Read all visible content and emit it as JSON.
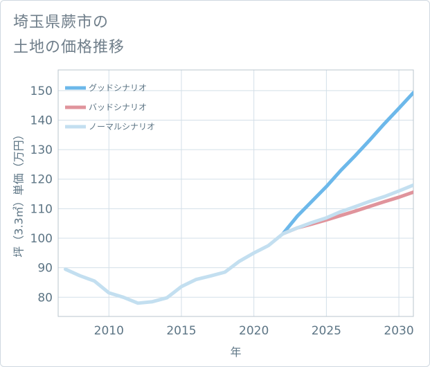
{
  "title": {
    "line1": "埼玉県蕨市の",
    "line2": "土地の価格推移"
  },
  "chart_data": {
    "type": "line",
    "xlabel": "年",
    "ylabel": "坪（3.3㎡）単価（万円）",
    "xlim": [
      2006.5,
      2031
    ],
    "ylim": [
      73.5,
      157
    ],
    "xticks": [
      2010,
      2015,
      2020,
      2025,
      2030
    ],
    "yticks": [
      80,
      90,
      100,
      110,
      120,
      130,
      140,
      150
    ],
    "grid": true,
    "legend_position": "top-left",
    "series": [
      {
        "name": "グッドシナリオ",
        "color": "#6cb8ea",
        "x": [
          2022,
          2023,
          2024,
          2025,
          2026,
          2027,
          2028,
          2029,
          2030,
          2031
        ],
        "y": [
          101.5,
          107.5,
          112.5,
          117.5,
          123.0,
          128.0,
          133.3,
          138.8,
          144.0,
          149.3
        ]
      },
      {
        "name": "バッドシナリオ",
        "color": "#e0949c",
        "x": [
          2022,
          2023,
          2024,
          2025,
          2026,
          2027,
          2028,
          2029,
          2030,
          2031
        ],
        "y": [
          101.5,
          103.5,
          104.8,
          106.2,
          107.7,
          109.2,
          110.8,
          112.4,
          113.9,
          115.6
        ]
      },
      {
        "name": "ノーマルシナリオ",
        "color": "#c3dff0",
        "x": [
          2007,
          2008,
          2009,
          2010,
          2011,
          2012,
          2013,
          2014,
          2015,
          2016,
          2017,
          2018,
          2019,
          2020,
          2021,
          2022,
          2023,
          2024,
          2025,
          2026,
          2027,
          2028,
          2029,
          2030,
          2031
        ],
        "y": [
          89.5,
          87.3,
          85.5,
          81.5,
          80.0,
          78.0,
          78.5,
          79.8,
          83.6,
          86.0,
          87.2,
          88.5,
          92.2,
          95.0,
          97.5,
          101.5,
          103.5,
          105.3,
          106.9,
          109.0,
          110.7,
          112.5,
          114.1,
          116.0,
          118.0
        ]
      }
    ]
  }
}
